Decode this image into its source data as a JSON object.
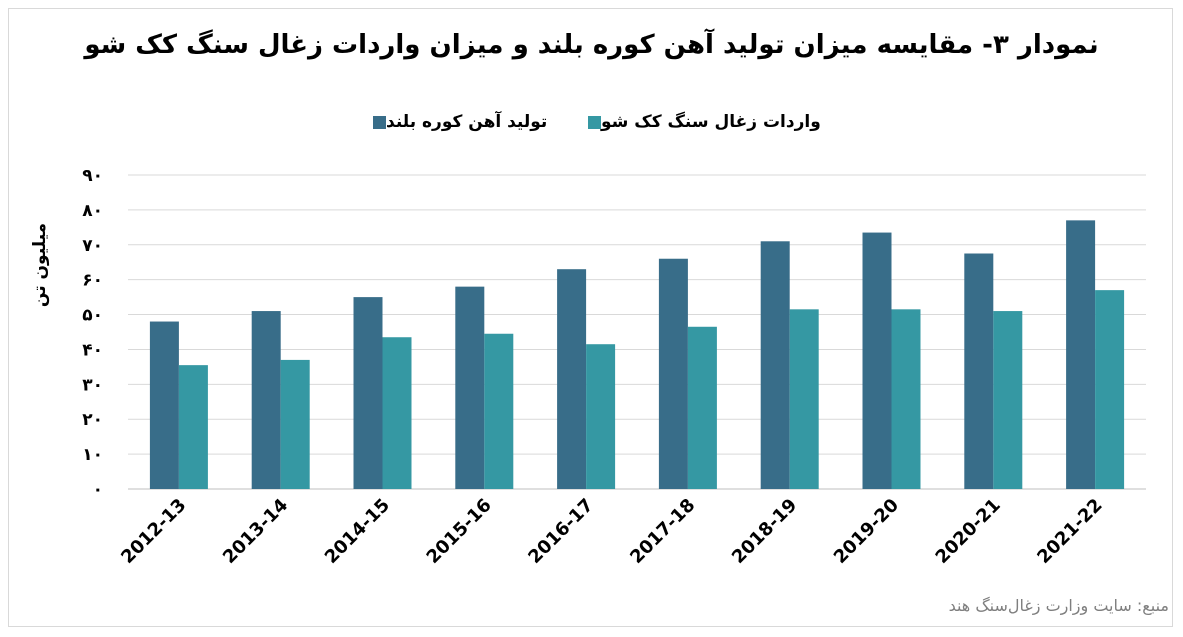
{
  "chart_data": {
    "type": "bar",
    "title": "نمودار ۳- مقایسه میزان تولید آهن کوره بلند و میزان واردات زغال سنگ کک شو",
    "ylabel": "میلیون تن",
    "xlabel": "",
    "categories": [
      "2012-13",
      "2013-14",
      "2014-15",
      "2015-16",
      "2016-17",
      "2017-18",
      "2018-19",
      "2019-20",
      "2020-21",
      "2021-22"
    ],
    "series": [
      {
        "name": "تولید آهن کوره بلند",
        "color": "#386d89",
        "values": [
          48,
          51,
          55,
          58,
          63,
          66,
          71,
          73.5,
          67.5,
          77
        ]
      },
      {
        "name": "واردات زغال سنگ کک شو",
        "color": "#3598a3",
        "values": [
          35.5,
          37,
          43.5,
          44.5,
          41.5,
          46.5,
          51.5,
          51.5,
          51,
          57
        ]
      }
    ],
    "ylim": [
      0,
      90
    ],
    "yticks": [
      "۰",
      "۱۰",
      "۲۰",
      "۳۰",
      "۴۰",
      "۵۰",
      "۶۰",
      "۷۰",
      "۸۰",
      "۹۰"
    ],
    "grid": true,
    "legend_position": "top"
  },
  "source_note": "منبع: سایت وزارت زغال‌سنگ هند"
}
